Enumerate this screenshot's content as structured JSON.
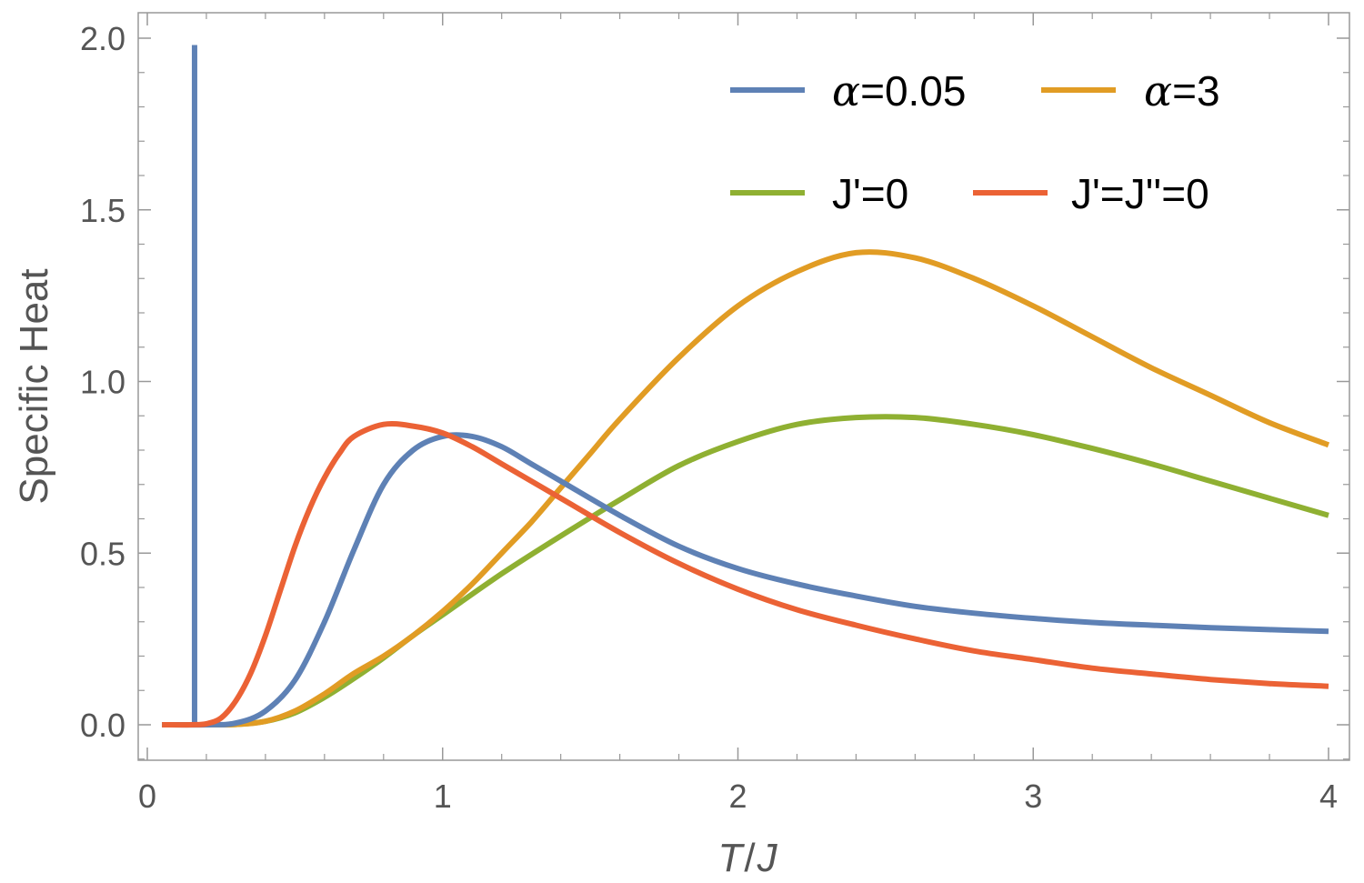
{
  "chart_data": {
    "type": "line",
    "xlabel_T": "T",
    "xlabel_sep": "/",
    "xlabel_J": "J",
    "ylabel": "Specific Heat",
    "xlim": [
      0,
      4
    ],
    "ylim": [
      -0.1,
      2.08
    ],
    "x_ticks": [
      0,
      1,
      2,
      3,
      4
    ],
    "y_ticks": [
      0.0,
      0.5,
      1.0,
      1.5,
      2.0
    ],
    "x_tick_labels": [
      "0",
      "1",
      "2",
      "3",
      "4"
    ],
    "y_tick_labels": [
      "0.0",
      "0.5",
      "1.0",
      "1.5",
      "2.0"
    ],
    "grid": false,
    "legend_placement": "top-right",
    "series": [
      {
        "name_symbol": "α",
        "name_rest": "=0.05",
        "color": "#5E81B5",
        "spike": {
          "x": 0.16,
          "y_top": 1.98
        },
        "points": [
          [
            0.05,
            0
          ],
          [
            0.2,
            0
          ],
          [
            0.3,
            0.005
          ],
          [
            0.4,
            0.04
          ],
          [
            0.5,
            0.13
          ],
          [
            0.6,
            0.3
          ],
          [
            0.7,
            0.51
          ],
          [
            0.8,
            0.7
          ],
          [
            0.9,
            0.8
          ],
          [
            1.0,
            0.84
          ],
          [
            1.1,
            0.84
          ],
          [
            1.2,
            0.81
          ],
          [
            1.3,
            0.76
          ],
          [
            1.4,
            0.71
          ],
          [
            1.6,
            0.61
          ],
          [
            1.8,
            0.52
          ],
          [
            2.0,
            0.455
          ],
          [
            2.2,
            0.41
          ],
          [
            2.4,
            0.375
          ],
          [
            2.6,
            0.345
          ],
          [
            2.8,
            0.325
          ],
          [
            3.0,
            0.31
          ],
          [
            3.2,
            0.298
          ],
          [
            3.4,
            0.29
          ],
          [
            3.6,
            0.283
          ],
          [
            3.8,
            0.277
          ],
          [
            4.0,
            0.272
          ]
        ]
      },
      {
        "name_symbol": "α",
        "name_rest": "=3",
        "color": "#E19C24",
        "points": [
          [
            0.05,
            0
          ],
          [
            0.2,
            0
          ],
          [
            0.3,
            0.001
          ],
          [
            0.4,
            0.01
          ],
          [
            0.5,
            0.04
          ],
          [
            0.6,
            0.09
          ],
          [
            0.7,
            0.15
          ],
          [
            0.8,
            0.2
          ],
          [
            0.9,
            0.26
          ],
          [
            1.0,
            0.33
          ],
          [
            1.1,
            0.41
          ],
          [
            1.2,
            0.5
          ],
          [
            1.3,
            0.59
          ],
          [
            1.4,
            0.69
          ],
          [
            1.5,
            0.79
          ],
          [
            1.6,
            0.89
          ],
          [
            1.8,
            1.07
          ],
          [
            2.0,
            1.22
          ],
          [
            2.2,
            1.32
          ],
          [
            2.4,
            1.375
          ],
          [
            2.6,
            1.36
          ],
          [
            2.8,
            1.3
          ],
          [
            3.0,
            1.22
          ],
          [
            3.2,
            1.13
          ],
          [
            3.4,
            1.04
          ],
          [
            3.6,
            0.96
          ],
          [
            3.8,
            0.88
          ],
          [
            4.0,
            0.815
          ]
        ]
      },
      {
        "name_symbol": "",
        "name_rest": "J'=0",
        "color": "#8FB032",
        "points": [
          [
            0.05,
            0
          ],
          [
            0.2,
            0
          ],
          [
            0.3,
            0.001
          ],
          [
            0.4,
            0.01
          ],
          [
            0.5,
            0.035
          ],
          [
            0.6,
            0.08
          ],
          [
            0.7,
            0.135
          ],
          [
            0.8,
            0.195
          ],
          [
            0.9,
            0.26
          ],
          [
            1.0,
            0.32
          ],
          [
            1.2,
            0.44
          ],
          [
            1.4,
            0.55
          ],
          [
            1.6,
            0.655
          ],
          [
            1.8,
            0.755
          ],
          [
            2.0,
            0.825
          ],
          [
            2.2,
            0.875
          ],
          [
            2.4,
            0.895
          ],
          [
            2.6,
            0.895
          ],
          [
            2.8,
            0.875
          ],
          [
            3.0,
            0.845
          ],
          [
            3.2,
            0.805
          ],
          [
            3.4,
            0.76
          ],
          [
            3.6,
            0.71
          ],
          [
            3.8,
            0.66
          ],
          [
            4.0,
            0.61
          ]
        ]
      },
      {
        "name_symbol": "",
        "name_rest": "J'=J''=0",
        "color": "#EB6235",
        "points": [
          [
            0.05,
            0
          ],
          [
            0.15,
            0
          ],
          [
            0.2,
            0.003
          ],
          [
            0.25,
            0.02
          ],
          [
            0.3,
            0.07
          ],
          [
            0.35,
            0.15
          ],
          [
            0.4,
            0.26
          ],
          [
            0.45,
            0.39
          ],
          [
            0.5,
            0.52
          ],
          [
            0.55,
            0.63
          ],
          [
            0.6,
            0.72
          ],
          [
            0.65,
            0.79
          ],
          [
            0.7,
            0.84
          ],
          [
            0.8,
            0.875
          ],
          [
            0.9,
            0.87
          ],
          [
            1.0,
            0.85
          ],
          [
            1.1,
            0.81
          ],
          [
            1.2,
            0.76
          ],
          [
            1.4,
            0.66
          ],
          [
            1.6,
            0.56
          ],
          [
            1.8,
            0.47
          ],
          [
            2.0,
            0.395
          ],
          [
            2.2,
            0.335
          ],
          [
            2.4,
            0.29
          ],
          [
            2.6,
            0.25
          ],
          [
            2.8,
            0.215
          ],
          [
            3.0,
            0.19
          ],
          [
            3.2,
            0.165
          ],
          [
            3.4,
            0.148
          ],
          [
            3.6,
            0.132
          ],
          [
            3.8,
            0.12
          ],
          [
            4.0,
            0.112
          ]
        ]
      }
    ]
  }
}
